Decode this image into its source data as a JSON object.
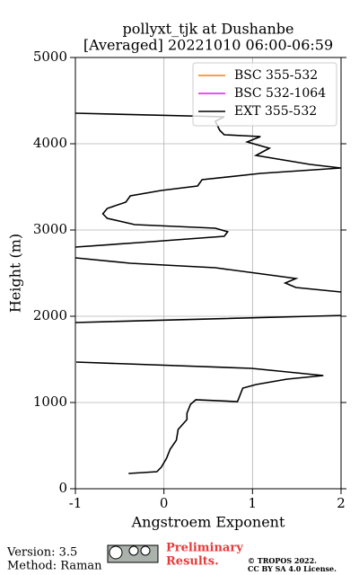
{
  "chart_data": {
    "type": "line",
    "title": "pollyxt_tjk at Dushanbe",
    "subtitle": "[Averaged] 20221010 06:00-06:59",
    "x_label": "Angstroem Exponent",
    "y_label": "Height (m)",
    "xlim": [
      -1,
      2
    ],
    "ylim": [
      0,
      5000
    ],
    "xticks": [
      -1,
      0,
      1,
      2
    ],
    "yticks": [
      0,
      1000,
      2000,
      3000,
      4000,
      5000
    ],
    "grid": true,
    "legend": "upper right",
    "series": [
      {
        "name": "BSC 355-532",
        "color": "#ff7f0e",
        "values": [],
        "heights": []
      },
      {
        "name": "BSC 532-1064",
        "color": "#e619e6",
        "values": [],
        "heights": []
      },
      {
        "name": "EXT 355-532",
        "color": "#000000",
        "values": [
          -0.4,
          -0.08,
          -0.03,
          0.03,
          0.07,
          0.14,
          0.16,
          0.26,
          0.26,
          0.3,
          0.36,
          0.83,
          0.89,
          1.04,
          1.39,
          1.8,
          0.99,
          -0.99,
          null,
          -1.0,
          2.05,
          null,
          2.0,
          1.49,
          1.37,
          1.49,
          1.19,
          0.58,
          -0.38,
          -1.0,
          null,
          -1.0,
          -0.28,
          0.68,
          0.72,
          0.58,
          -0.33,
          -0.64,
          -0.69,
          -0.64,
          -0.43,
          -0.38,
          -0.03,
          0.38,
          0.43,
          1.09,
          2.0,
          1.65,
          1.04,
          1.19,
          0.94,
          1.09,
          0.68,
          0.63,
          0.58,
          0.68,
          -1.0
        ],
        "heights": [
          177,
          198,
          250,
          354,
          458,
          563,
          688,
          802,
          875,
          979,
          1031,
          1010,
          1167,
          1208,
          1271,
          1313,
          1396,
          1469,
          null,
          1927,
          2010,
          null,
          2281,
          2333,
          2385,
          2438,
          2479,
          2563,
          2615,
          2677,
          null,
          2802,
          2854,
          2927,
          2979,
          3021,
          3063,
          3135,
          3188,
          3250,
          3323,
          3396,
          3458,
          3510,
          3583,
          3656,
          3719,
          3760,
          3865,
          3948,
          4021,
          4083,
          4104,
          4156,
          4260,
          4313,
          4354
        ]
      }
    ]
  },
  "footer": {
    "version": "Version: 3.5",
    "method": "Method: Raman",
    "notice_line1": "Preliminary",
    "notice_line2": "Results.",
    "copyright": "© TROPOS 2022.",
    "license": "CC BY SA 4.0 License."
  }
}
